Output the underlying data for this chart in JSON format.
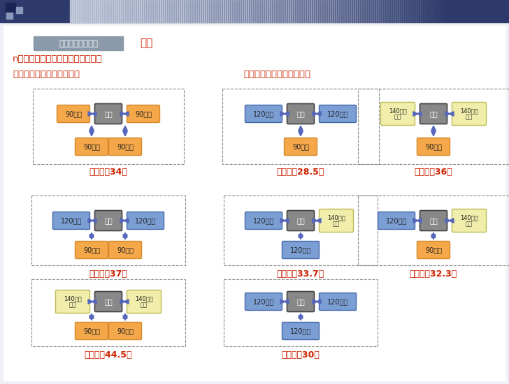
{
  "bg_color": "#e8eaf0",
  "main_bg": "#ffffff",
  "header_bar_color": "#2d3a6b",
  "title_box_color": "#8a9aaa",
  "title_box_text": "典型户型拼接分析",
  "title_conclusion": "结论",
  "subtitle": "n得出可能的典型户型组合方式如下",
  "section1_title": "一梯四户排布组合（三种）",
  "section2_title": "一梯三户排布组合（五种）",
  "orange_color": "#f5a84a",
  "orange_border": "#d4882a",
  "blue_color": "#7b9fd4",
  "blue_border": "#4466aa",
  "yellow_color": "#f0eeaa",
  "yellow_border": "#bbbb55",
  "stair_color": "#888888",
  "stair_border": "#444444",
  "arrow_color": "#5566bb",
  "red_text": "#cc2200",
  "dashed_color": "#888888"
}
